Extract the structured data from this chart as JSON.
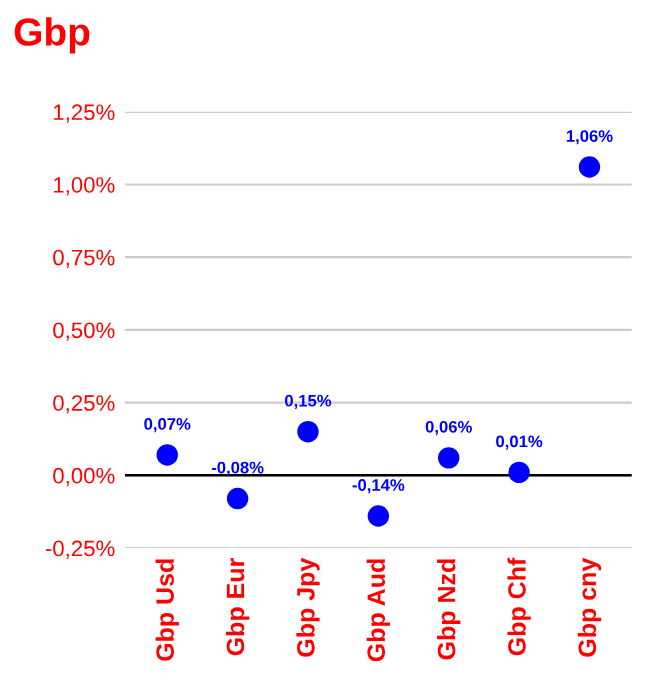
{
  "chart_data": {
    "type": "scatter",
    "title": "Gbp",
    "categories": [
      "Gbp Usd",
      "Gbp Eur",
      "Gbp Jpy",
      "Gbp Aud",
      "Gbp Nzd",
      "Gbp Chf",
      "Gbp cny"
    ],
    "series": [
      {
        "color": "#0000ff",
        "values": [
          0.07,
          -0.08,
          0.15,
          -0.14,
          0.06,
          0.01,
          1.06
        ],
        "value_labels": [
          "0,07%",
          "-0,08%",
          "0,15%",
          "-0,14%",
          "0,06%",
          "0,01%",
          "1,06%"
        ]
      }
    ],
    "ylim": [
      -0.25,
      1.25
    ],
    "yticks": [
      {
        "value": -0.25,
        "label": "-0,25%"
      },
      {
        "value": 0,
        "label": "0,00%"
      },
      {
        "value": 0.25,
        "label": "0,25%"
      },
      {
        "value": 0.5,
        "label": "0,50%"
      },
      {
        "value": 0.75,
        "label": "0,75%"
      },
      {
        "value": 1.0,
        "label": "1,00%"
      },
      {
        "value": 1.25,
        "label": "1,25%"
      }
    ],
    "ref_lines": [
      {
        "axis": "y",
        "value": 0,
        "color": "#000000"
      }
    ],
    "grid": "y",
    "marker": "circle",
    "legend": false
  }
}
